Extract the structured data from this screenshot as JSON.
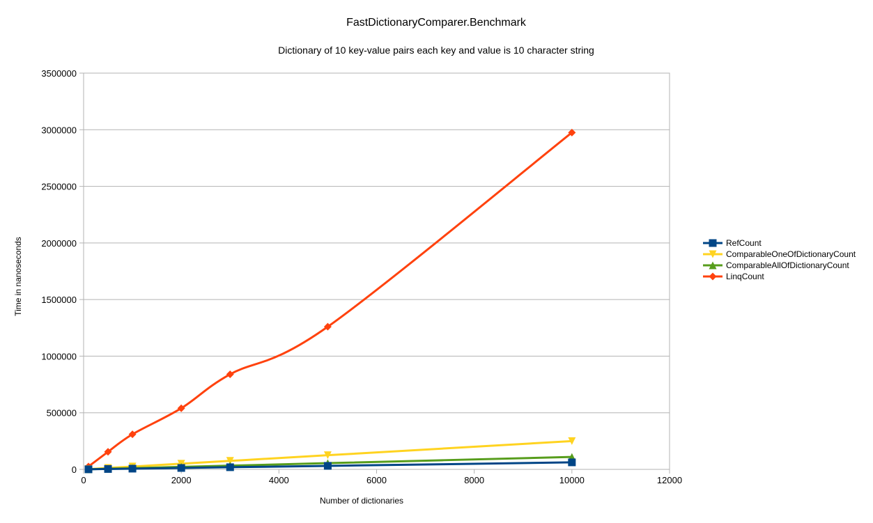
{
  "chart_data": {
    "type": "line",
    "title": "FastDictionaryComparer.Benchmark",
    "subtitle": "Dictionary of 10 key-value pairs each key and value is 10 character string",
    "xlabel": "Number of dictionaries",
    "ylabel": "Time in nanoseconds",
    "xlim": [
      0,
      12000
    ],
    "ylim": [
      0,
      3500000
    ],
    "x_ticks": [
      0,
      2000,
      4000,
      6000,
      8000,
      10000,
      12000
    ],
    "y_ticks": [
      0,
      500000,
      1000000,
      1500000,
      2000000,
      2500000,
      3000000,
      3500000
    ],
    "grid": "horizontal",
    "legend_position": "right",
    "x": [
      100,
      500,
      1000,
      2000,
      3000,
      5000,
      10000
    ],
    "series": [
      {
        "name": "RefCount",
        "color": "#004586",
        "marker": "square",
        "values": [
          800,
          3500,
          6500,
          12500,
          19000,
          31000,
          62000
        ]
      },
      {
        "name": "ComparableOneOfDictionaryCount",
        "color": "#ffd320",
        "marker": "triangle-down",
        "values": [
          2500,
          12500,
          25000,
          50000,
          75000,
          125000,
          250000
        ]
      },
      {
        "name": "ComparableAllOfDictionaryCount",
        "color": "#579d1c",
        "marker": "triangle-up",
        "values": [
          1100,
          5500,
          11000,
          22000,
          33000,
          55000,
          110000
        ]
      },
      {
        "name": "LinqCount",
        "color": "#ff420e",
        "marker": "diamond",
        "values": [
          25000,
          155000,
          310000,
          540000,
          840000,
          1260000,
          2975000
        ]
      }
    ]
  }
}
